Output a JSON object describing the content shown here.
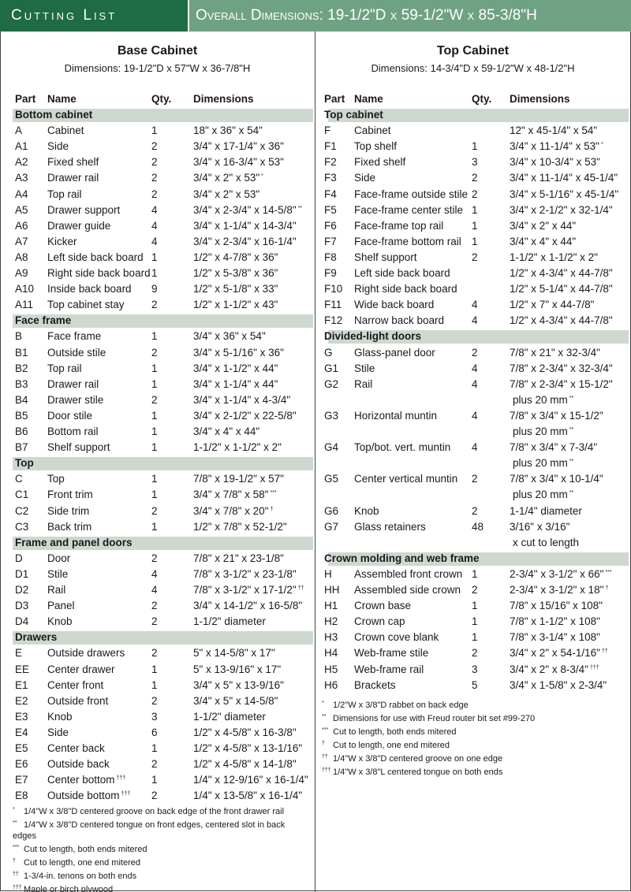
{
  "header": {
    "title": "Cutting List",
    "dimensions": "Overall Dimensions: 19-1/2\"D x 59-1/2\"W x 85-3/8\"H"
  },
  "columns": [
    {
      "title": "Base Cabinet",
      "dimensions": "Dimensions: 19-1/2\"D x 57\"W x 36-7/8\"H",
      "headers": [
        "Part",
        "Name",
        "Qty.",
        "Dimensions"
      ],
      "sections": [
        {
          "name": "Bottom cabinet",
          "rows": [
            {
              "p": "A",
              "n": "Cabinet",
              "q": 1,
              "d": "18\" x 36\" x 54\""
            },
            {
              "p": "A1",
              "n": "Side",
              "q": 2,
              "d": "3/4\" x 17-1/4\" x 36\""
            },
            {
              "p": "A2",
              "n": "Fixed shelf",
              "q": 2,
              "d": "3/4\" x 16-3/4\" x 53\""
            },
            {
              "p": "A3",
              "n": "Drawer rail",
              "q": 2,
              "d": "3/4\" x 2\" x 53\"",
              "s": "*"
            },
            {
              "p": "A4",
              "n": "Top rail",
              "q": 2,
              "d": "3/4\" x 2\" x 53\""
            },
            {
              "p": "A5",
              "n": "Drawer support",
              "q": 4,
              "d": "3/4\" x 2-3/4\" x 14-5/8\"",
              "s": "**"
            },
            {
              "p": "A6",
              "n": "Drawer guide",
              "q": 4,
              "d": "3/4\" x 1-1/4\" x 14-3/4\""
            },
            {
              "p": "A7",
              "n": "Kicker",
              "q": 4,
              "d": "3/4\" x 2-3/4\" x 16-1/4\""
            },
            {
              "p": "A8",
              "n": "Left side back board",
              "q": 1,
              "d": "1/2\" x 4-7/8\" x 36\""
            },
            {
              "p": "A9",
              "n": "Right side back board",
              "q": 1,
              "d": "1/2\" x 5-3/8\" x 36\""
            },
            {
              "p": "A10",
              "n": "Inside back board",
              "q": 9,
              "d": "1/2\" x 5-1/8\" x 33\""
            },
            {
              "p": "A11",
              "n": "Top cabinet stay",
              "q": 2,
              "d": "1/2\" x 1-1/2\" x 43\""
            }
          ]
        },
        {
          "name": "Face frame",
          "rows": [
            {
              "p": "B",
              "n": "Face frame",
              "q": 1,
              "d": "3/4\" x 36\" x 54\""
            },
            {
              "p": "B1",
              "n": "Outside stile",
              "q": 2,
              "d": "3/4\" x 5-1/16\" x 36\""
            },
            {
              "p": "B2",
              "n": "Top rail",
              "q": 1,
              "d": "3/4\" x 1-1/2\" x 44\""
            },
            {
              "p": "B3",
              "n": "Drawer rail",
              "q": 1,
              "d": "3/4\" x 1-1/4\" x 44\""
            },
            {
              "p": "B4",
              "n": "Drawer stile",
              "q": 2,
              "d": "3/4\" x 1-1/4\" x 4-3/4\""
            },
            {
              "p": "B5",
              "n": "Door stile",
              "q": 1,
              "d": "3/4\" x 2-1/2\" x 22-5/8\""
            },
            {
              "p": "B6",
              "n": "Bottom rail",
              "q": 1,
              "d": "3/4\" x 4\" x 44\""
            },
            {
              "p": "B7",
              "n": "Shelf support",
              "q": 1,
              "d": "1-1/2\" x 1-1/2\" x 2\""
            }
          ]
        },
        {
          "name": "Top",
          "rows": [
            {
              "p": "C",
              "n": "Top",
              "q": 1,
              "d": "7/8\" x 19-1/2\" x 57\""
            },
            {
              "p": "C1",
              "n": "Front trim",
              "q": 1,
              "d": "3/4\" x 7/8\" x 58\"",
              "s": "***"
            },
            {
              "p": "C2",
              "n": "Side trim",
              "q": 2,
              "d": "3/4\" x 7/8\" x 20\"",
              "s": "†"
            },
            {
              "p": "C3",
              "n": "Back trim",
              "q": 1,
              "d": "1/2\" x 7/8\" x 52-1/2\""
            }
          ]
        },
        {
          "name": "Frame and panel doors",
          "rows": [
            {
              "p": "D",
              "n": "Door",
              "q": 2,
              "d": "7/8\" x 21\" x 23-1/8\""
            },
            {
              "p": "D1",
              "n": "Stile",
              "q": 4,
              "d": "7/8\" x 3-1/2\" x 23-1/8\""
            },
            {
              "p": "D2",
              "n": "Rail",
              "q": 4,
              "d": "7/8\" x 3-1/2\" x 17-1/2\"",
              "s": "††"
            },
            {
              "p": "D3",
              "n": "Panel",
              "q": 2,
              "d": "3/4\" x 14-1/2\" x 16-5/8\""
            },
            {
              "p": "D4",
              "n": "Knob",
              "q": 2,
              "d": "1-1/2\" diameter"
            }
          ]
        },
        {
          "name": "Drawers",
          "rows": [
            {
              "p": "E",
              "n": "Outside drawers",
              "q": 2,
              "d": "5\" x 14-5/8\" x 17\""
            },
            {
              "p": "EE",
              "n": "Center drawer",
              "q": 1,
              "d": "5\" x 13-9/16\" x 17\""
            },
            {
              "p": "E1",
              "n": "Center front",
              "q": 1,
              "d": "3/4\" x 5\" x 13-9/16\""
            },
            {
              "p": "E2",
              "n": "Outside front",
              "q": 2,
              "d": "3/4\" x 5\" x 14-5/8\""
            },
            {
              "p": "E3",
              "n": "Knob",
              "q": 3,
              "d": "1-1/2\" diameter"
            },
            {
              "p": "E4",
              "n": "Side",
              "q": 6,
              "d": "1/2\" x 4-5/8\" x 16-3/8\""
            },
            {
              "p": "E5",
              "n": "Center back",
              "q": 1,
              "d": "1/2\" x 4-5/8\" x 13-1/16\""
            },
            {
              "p": "E6",
              "n": "Outside back",
              "q": 2,
              "d": "1/2\" x 4-5/8\" x 14-1/8\""
            },
            {
              "p": "E7",
              "n": "Center bottom",
              "ns": "†††",
              "q": 1,
              "d": "1/4\" x 12-9/16\" x 16-1/4\""
            },
            {
              "p": "E8",
              "n": "Outside bottom",
              "ns": "†††",
              "q": 2,
              "d": "1/4\" x 13-5/8\" x 16-1/4\""
            }
          ]
        }
      ],
      "footnotes": [
        {
          "mark": "*",
          "text": "1/4\"W x 3/8\"D centered groove on back edge of the front drawer rail"
        },
        {
          "mark": "**",
          "text": "1/4\"W x 3/8\"D centered tongue on front edges, centered slot in back edges"
        },
        {
          "mark": "***",
          "text": "Cut to length, both ends mitered"
        },
        {
          "mark": "†",
          "text": "Cut to length, one end mitered"
        },
        {
          "mark": "††",
          "text": "1-3/4-in. tenons on both ends"
        },
        {
          "mark": "†††",
          "text": "Maple or birch plywood"
        }
      ]
    },
    {
      "title": "Top Cabinet",
      "dimensions": "Dimensions: 14-3/4\"D x 59-1/2\"W x 48-1/2\"H",
      "headers": [
        "Part",
        "Name",
        "Qty.",
        "Dimensions"
      ],
      "sections": [
        {
          "name": "Top cabinet",
          "rows": [
            {
              "p": "F",
              "n": "Cabinet",
              "d": "12\" x 45-1/4\" x 54\""
            },
            {
              "p": "F1",
              "n": "Top shelf",
              "q": 1,
              "d": "3/4\" x 11-1/4\" x 53\"",
              "s": "*"
            },
            {
              "p": "F2",
              "n": "Fixed shelf",
              "q": 3,
              "d": "3/4\" x 10-3/4\" x 53\""
            },
            {
              "p": "F3",
              "n": "Side",
              "q": 2,
              "d": "3/4\" x 11-1/4\" x 45-1/4\""
            },
            {
              "p": "F4",
              "n": "Face-frame outside stile",
              "q": 2,
              "d": "3/4\" x 5-1/16\" x 45-1/4\""
            },
            {
              "p": "F5",
              "n": "Face-frame center stile",
              "q": 1,
              "d": "3/4\" x 2-1/2\" x 32-1/4\""
            },
            {
              "p": "F6",
              "n": "Face-frame top rail",
              "q": 1,
              "d": "3/4\" x 2\" x 44\""
            },
            {
              "p": "F7",
              "n": "Face-frame bottom rail",
              "q": 1,
              "d": "3/4\" x 4\" x 44\""
            },
            {
              "p": "F8",
              "n": "Shelf support",
              "q": 2,
              "d": "1-1/2\" x 1-1/2\" x 2\""
            },
            {
              "p": "F9",
              "n": "Left side back board",
              "d": "1/2\" x 4-3/4\" x 44-7/8\""
            },
            {
              "p": "F10",
              "n": "Right side back board",
              "d": "1/2\" x 5-1/4\" x 44-7/8\""
            },
            {
              "p": "F11",
              "n": "Wide back board",
              "q": 4,
              "d": "1/2\" x 7\" x 44-7/8\""
            },
            {
              "p": "F12",
              "n": "Narrow back board",
              "q": 4,
              "d": "1/2\" x 4-3/4\" x 44-7/8\""
            }
          ]
        },
        {
          "name": "Divided-light doors",
          "rows": [
            {
              "p": "G",
              "n": "Glass-panel door",
              "q": 2,
              "d": "7/8\" x 21\" x 32-3/4\""
            },
            {
              "p": "G1",
              "n": "Stile",
              "q": 4,
              "d": "7/8\" x 2-3/4\" x 32-3/4\""
            },
            {
              "p": "G2",
              "n": "Rail",
              "q": 4,
              "d": "7/8\" x 2-3/4\" x 15-1/2\"",
              "d2": "plus 20 mm",
              "s2": "**"
            },
            {
              "p": "G3",
              "n": "Horizontal muntin",
              "q": 4,
              "d": "7/8\" x 3/4\" x 15-1/2\"",
              "d2": "plus 20 mm",
              "s2": "**"
            },
            {
              "p": "G4",
              "n": "Top/bot. vert. muntin",
              "q": 4,
              "d": "7/8\" x 3/4\" x 7-3/4\"",
              "d2": "plus 20 mm",
              "s2": "**"
            },
            {
              "p": "G5",
              "n": "Center vertical muntin",
              "q": 2,
              "d": "7/8\" x 3/4\" x 10-1/4\"",
              "d2": "plus 20 mm",
              "s2": "**"
            },
            {
              "p": "G6",
              "n": "Knob",
              "q": 2,
              "d": "1-1/4\" diameter"
            },
            {
              "p": "G7",
              "n": "Glass retainers",
              "q": 48,
              "d": "3/16\" x 3/16\"",
              "d2": "x cut to length"
            }
          ]
        },
        {
          "name": "Crown molding and web frame",
          "rows": [
            {
              "p": "H",
              "n": "Assembled front crown",
              "q": 1,
              "d": "2-3/4\" x 3-1/2\" x 66\"",
              "s": "***"
            },
            {
              "p": "HH",
              "n": "Assembled side crown",
              "q": 2,
              "d": "2-3/4\" x 3-1/2\" x 18\"",
              "s": "†"
            },
            {
              "p": "H1",
              "n": "Crown base",
              "q": 1,
              "d": "7/8\" x 15/16\" x 108\""
            },
            {
              "p": "H2",
              "n": "Crown cap",
              "q": 1,
              "d": "7/8\" x 1-1/2\" x 108\""
            },
            {
              "p": "H3",
              "n": "Crown cove blank",
              "q": 1,
              "d": "7/8\" x 3-1/4\" x 108\""
            },
            {
              "p": "H4",
              "n": "Web-frame stile",
              "q": 2,
              "d": "3/4\" x 2\" x 54-1/16\"",
              "s": "††"
            },
            {
              "p": "H5",
              "n": "Web-frame rail",
              "q": 3,
              "d": "3/4\" x 2\" x 8-3/4\"",
              "s": "†††"
            },
            {
              "p": "H6",
              "n": "Brackets",
              "q": 5,
              "d": "3/4\" x 1-5/8\" x 2-3/4\""
            }
          ]
        }
      ],
      "footnotes": [
        {
          "mark": "*",
          "text": "1/2\"W x 3/8\"D rabbet on back edge"
        },
        {
          "mark": "**",
          "text": "Dimensions for use with Freud router bit set #99-270"
        },
        {
          "mark": "***",
          "text": "Cut to length, both ends mitered"
        },
        {
          "mark": "†",
          "text": "Cut to length, one end mitered"
        },
        {
          "mark": "††",
          "text": "1/4\"W x 3/8\"D centered groove on one edge"
        },
        {
          "mark": "†††",
          "text": "1/4\"W x 3/8\"L centered tongue on both ends"
        }
      ]
    }
  ]
}
